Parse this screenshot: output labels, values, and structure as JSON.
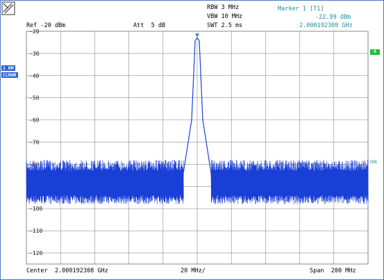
{
  "header": {
    "rbw": "RBW 3 MHz",
    "vbw": "VBW 10 MHz",
    "swt": "SWT 2.5 ms",
    "ref": "Ref -20 dBm",
    "att": "Att  5 dB",
    "marker_title": "Marker 1 [T1]",
    "marker_level": "-22.99 dBm",
    "marker_freq": "2.000192308 GHz"
  },
  "side": {
    "box1": "1 RM",
    "box2": "CLRWR",
    "right_a": "A",
    "right_3db": "3DB"
  },
  "footer": {
    "center": "Center  2.000192308 GHz",
    "div": "20 MHz/",
    "span": "Span  200 MHz"
  },
  "chart_data": {
    "type": "line",
    "y_ticks": [
      -20,
      -30,
      -40,
      -50,
      -60,
      -70,
      -80,
      -90,
      -100,
      -110,
      -120
    ],
    "y_tick_labels": [
      "-20",
      "-30",
      "-40",
      "-50",
      "-60",
      "-70",
      "-80",
      "-90",
      "-100",
      "-110",
      "-120"
    ],
    "ylim": [
      -125,
      -20
    ],
    "x_divisions": 10,
    "noise_floor_dbm": {
      "upper": -78,
      "lower": -96
    },
    "peak_dbm": -22.99,
    "signal_top_dbm": -84,
    "grid": true,
    "trace_color": "#1a3fd6"
  },
  "colors": {
    "trace": "#1a3fd6",
    "grid": "#8a8a8a",
    "marker_text": "#1e5fbf"
  },
  "icons": {
    "logo": "rohde-schwarz-logo-icon",
    "marker": "marker-triangle-icon"
  }
}
